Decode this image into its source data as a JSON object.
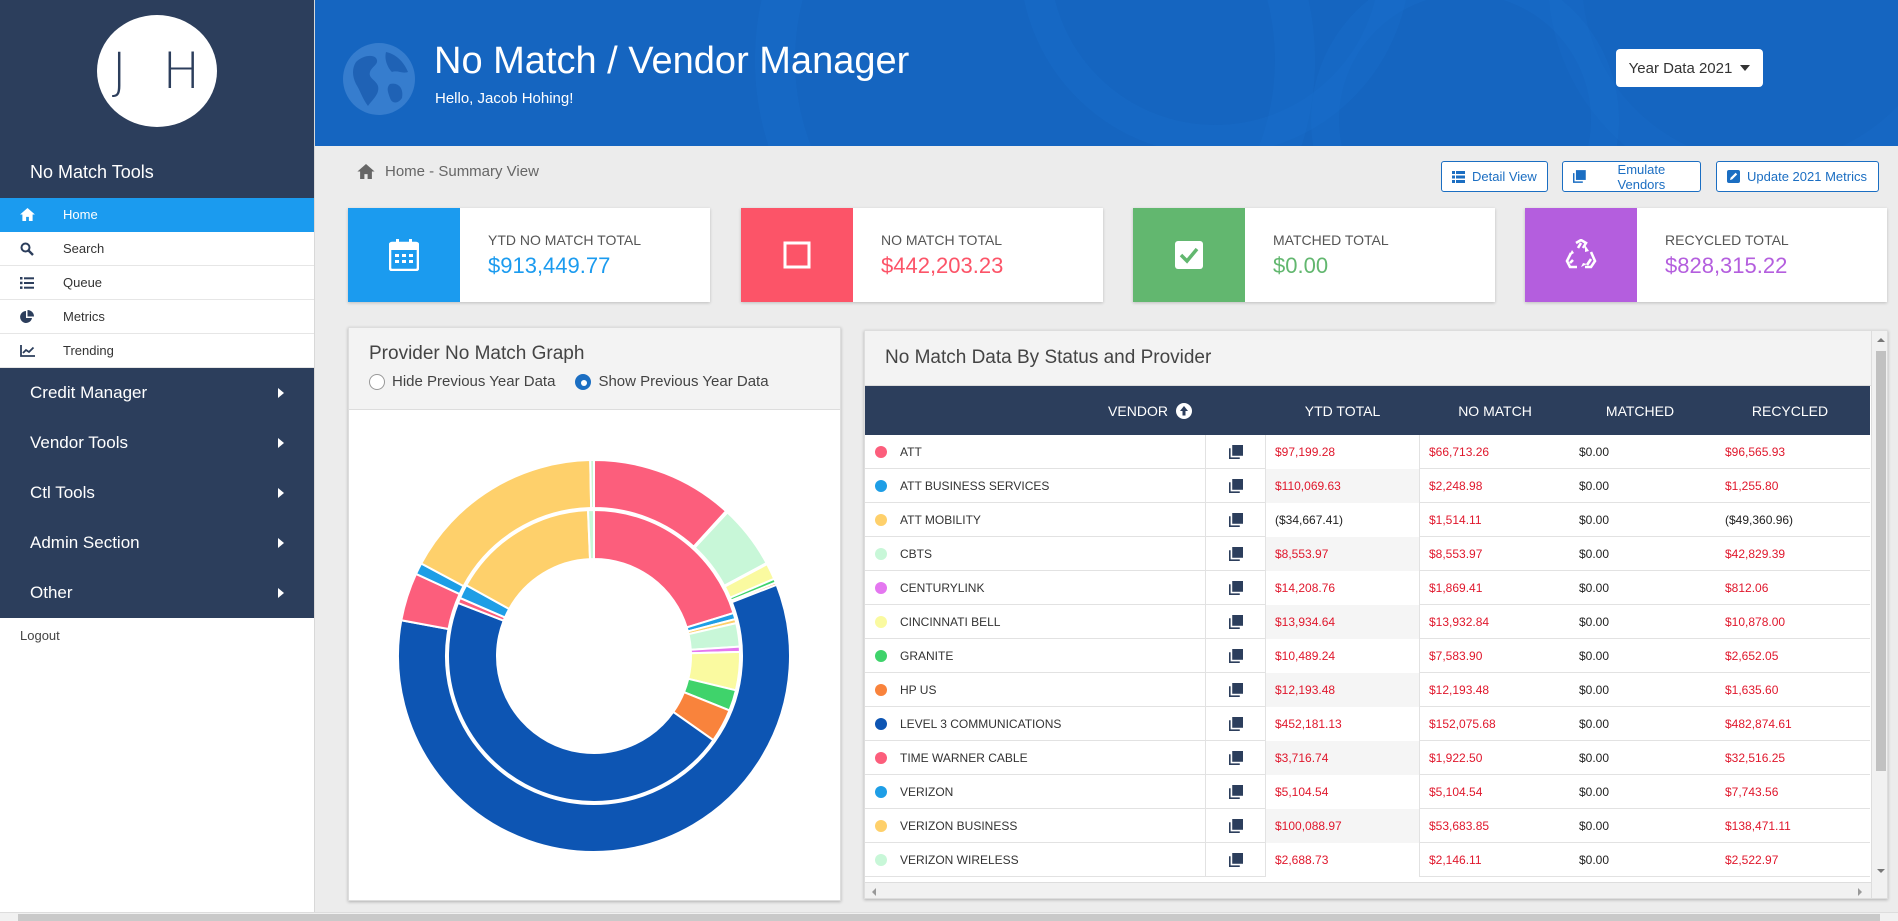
{
  "user": {
    "initials": "J H",
    "greeting": "Hello, Jacob Hohing!"
  },
  "sidebar": {
    "section_title": "No Match Tools",
    "items": [
      {
        "label": "Home",
        "icon": "home-icon",
        "active": true
      },
      {
        "label": "Search",
        "icon": "search-icon",
        "active": false
      },
      {
        "label": "Queue",
        "icon": "list-icon",
        "active": false
      },
      {
        "label": "Metrics",
        "icon": "pie-chart-icon",
        "active": false
      },
      {
        "label": "Trending",
        "icon": "line-chart-icon",
        "active": false
      }
    ],
    "sections": [
      "Credit Manager",
      "Vendor Tools",
      "Ctl Tools",
      "Admin Section",
      "Other"
    ],
    "logout": "Logout"
  },
  "header": {
    "title": "No Match / Vendor Manager",
    "year_button": "Year Data 2021"
  },
  "breadcrumb": "Home - Summary View",
  "actions": {
    "detail": "Detail View",
    "emulate": "Emulate Vendors",
    "update": "Update 2021 Metrics"
  },
  "cards": [
    {
      "label": "YTD NO MATCH TOTAL",
      "value": "$913,449.77",
      "color": "#1b9bef",
      "icon": "calendar-icon"
    },
    {
      "label": "NO MATCH TOTAL",
      "value": "$442,203.23",
      "color": "#fc5468",
      "icon": "square-icon"
    },
    {
      "label": "MATCHED TOTAL",
      "value": "$0.00",
      "color": "#62b76f",
      "icon": "check-square-icon"
    },
    {
      "label": "RECYCLED TOTAL",
      "value": "$828,315.22",
      "color": "#b45ede",
      "icon": "recycle-icon"
    }
  ],
  "graph": {
    "title": "Provider No Match Graph",
    "hide_label": "Hide Previous Year Data",
    "show_label": "Show Previous Year Data",
    "selected": "show"
  },
  "table": {
    "title": "No Match Data By Status and Provider",
    "columns": {
      "vendor": "VENDOR",
      "ytd": "YTD TOTAL",
      "nomatch": "NO MATCH",
      "matched": "MATCHED",
      "recycled": "RECYCLED"
    },
    "rows": [
      {
        "vendor": "ATT",
        "color": "#fc5e7c",
        "ytd": "$97,199.28",
        "nomatch": "$66,713.26",
        "matched": "$0.00",
        "recycled": "$96,565.93",
        "ytd_neg": false,
        "rec_neg": false
      },
      {
        "vendor": "ATT BUSINESS SERVICES",
        "color": "#1e9ee6",
        "ytd": "$110,069.63",
        "nomatch": "$2,248.98",
        "matched": "$0.00",
        "recycled": "$1,255.80",
        "ytd_neg": false,
        "rec_neg": false
      },
      {
        "vendor": "ATT MOBILITY",
        "color": "#fed06b",
        "ytd": "($34,667.41)",
        "nomatch": "$1,514.11",
        "matched": "$0.00",
        "recycled": "($49,360.96)",
        "ytd_neg": true,
        "rec_neg": true
      },
      {
        "vendor": "CBTS",
        "color": "#c8f7d8",
        "ytd": "$8,553.97",
        "nomatch": "$8,553.97",
        "matched": "$0.00",
        "recycled": "$42,829.39",
        "ytd_neg": false,
        "rec_neg": false
      },
      {
        "vendor": "CENTURYLINK",
        "color": "#e477f0",
        "ytd": "$14,208.76",
        "nomatch": "$1,869.41",
        "matched": "$0.00",
        "recycled": "$812.06",
        "ytd_neg": false,
        "rec_neg": false
      },
      {
        "vendor": "CINCINNATI BELL",
        "color": "#fafaa0",
        "ytd": "$13,934.64",
        "nomatch": "$13,932.84",
        "matched": "$0.00",
        "recycled": "$10,878.00",
        "ytd_neg": false,
        "rec_neg": false
      },
      {
        "vendor": "GRANITE",
        "color": "#3fd36b",
        "ytd": "$10,489.24",
        "nomatch": "$7,583.90",
        "matched": "$0.00",
        "recycled": "$2,652.05",
        "ytd_neg": false,
        "rec_neg": false
      },
      {
        "vendor": "HP US",
        "color": "#f9833c",
        "ytd": "$12,193.48",
        "nomatch": "$12,193.48",
        "matched": "$0.00",
        "recycled": "$1,635.60",
        "ytd_neg": false,
        "rec_neg": false
      },
      {
        "vendor": "LEVEL 3 COMMUNICATIONS",
        "color": "#0d55b3",
        "ytd": "$452,181.13",
        "nomatch": "$152,075.68",
        "matched": "$0.00",
        "recycled": "$482,874.61",
        "ytd_neg": false,
        "rec_neg": false
      },
      {
        "vendor": "TIME WARNER CABLE",
        "color": "#fc5e7c",
        "ytd": "$3,716.74",
        "nomatch": "$1,922.50",
        "matched": "$0.00",
        "recycled": "$32,516.25",
        "ytd_neg": false,
        "rec_neg": false
      },
      {
        "vendor": "VERIZON",
        "color": "#1e9ee6",
        "ytd": "$5,104.54",
        "nomatch": "$5,104.54",
        "matched": "$0.00",
        "recycled": "$7,743.56",
        "ytd_neg": false,
        "rec_neg": false
      },
      {
        "vendor": "VERIZON BUSINESS",
        "color": "#fed06b",
        "ytd": "$100,088.97",
        "nomatch": "$53,683.85",
        "matched": "$0.00",
        "recycled": "$138,471.11",
        "ytd_neg": false,
        "rec_neg": false
      },
      {
        "vendor": "VERIZON WIRELESS",
        "color": "#c8f7d8",
        "ytd": "$2,688.73",
        "nomatch": "$2,146.11",
        "matched": "$0.00",
        "recycled": "$2,522.97",
        "ytd_neg": false,
        "rec_neg": false
      }
    ]
  },
  "chart_data": {
    "type": "pie",
    "series": [
      {
        "values": [
          96565.93,
          1255.8,
          0,
          42829.39,
          812.06,
          10878.0,
          2652.05,
          1635.6,
          482874.61,
          32516.25,
          7743.56,
          138471.11,
          2522.97
        ]
      },
      {
        "values": [
          66713.26,
          2248.98,
          1514.11,
          8553.97,
          1869.41,
          13932.84,
          7583.9,
          12193.48,
          152075.68,
          1922.5,
          5104.54,
          53683.85,
          2146.11
        ]
      }
    ],
    "categories": [
      "ATT",
      "ATT BUSINESS SERVICES",
      "ATT MOBILITY",
      "CBTS",
      "CENTURYLINK",
      "CINCINNATI BELL",
      "GRANITE",
      "HP US",
      "LEVEL 3 COMMUNICATIONS",
      "TIME WARNER CABLE",
      "VERIZON",
      "VERIZON BUSINESS",
      "VERIZON WIRELESS"
    ],
    "colors": [
      "#fc5e7c",
      "#1e9ee6",
      "#fed06b",
      "#c8f7d8",
      "#e477f0",
      "#fafaa0",
      "#3fd36b",
      "#f9833c",
      "#0d55b3",
      "#fc5e7c",
      "#1e9ee6",
      "#fed06b",
      "#c8f7d8"
    ]
  }
}
